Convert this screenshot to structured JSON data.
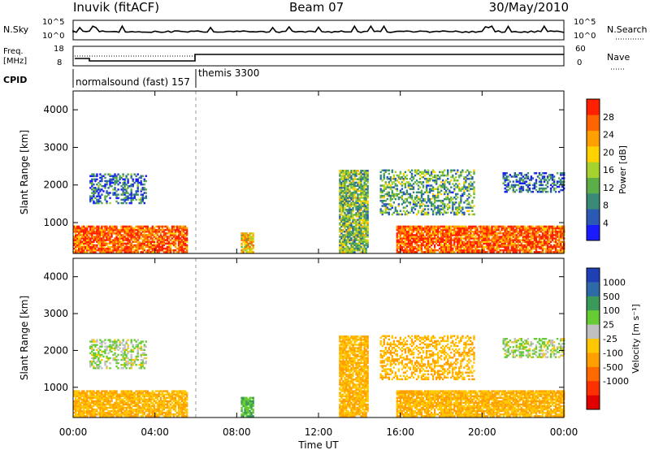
{
  "header": {
    "title_left": "Inuvik (fitACF)",
    "title_center": "Beam 07",
    "title_right": "30/May/2010"
  },
  "noise_panel": {
    "left_label": "N.Sky",
    "right_label": "N.Search",
    "left_ticks": [
      "10^5",
      "10^0"
    ],
    "right_ticks": [
      "10^5",
      "10^0"
    ]
  },
  "freq_panel": {
    "left_label_1": "Freq.",
    "left_label_2": "[MHz]",
    "right_label": "Nave",
    "left_ticks": [
      "18",
      "8"
    ],
    "right_ticks": [
      "60",
      "0"
    ]
  },
  "cpid": {
    "label": "CPID",
    "segments": [
      {
        "text": "normalsound (fast) 157",
        "start_hour": 0,
        "end_hour": 6
      },
      {
        "text": "themis 3300",
        "start_hour": 6,
        "end_hour": 24
      }
    ]
  },
  "x_axis": {
    "label": "Time UT",
    "ticks": [
      "00:00",
      "04:00",
      "08:00",
      "12:00",
      "16:00",
      "20:00",
      "00:00"
    ],
    "tick_hours": [
      0,
      4,
      8,
      12,
      16,
      20,
      24
    ]
  },
  "y_axis": {
    "label": "Slant Range [km]",
    "ticks": [
      "1000",
      "2000",
      "3000",
      "4000"
    ],
    "tick_values": [
      1000,
      2000,
      3000,
      4000
    ],
    "range": [
      180,
      4500
    ]
  },
  "power_scale": {
    "label": "Power [dB]",
    "ticks": [
      "4",
      "8",
      "12",
      "16",
      "20",
      "24",
      "28"
    ],
    "colors": [
      "#1a1aff",
      "#2a5ab4",
      "#3a8a78",
      "#5cae48",
      "#a6d230",
      "#ffd200",
      "#ffa000",
      "#ff6400",
      "#ff2000"
    ]
  },
  "velocity_scale": {
    "label": "Velocity [m s⁻¹]",
    "ticks": [
      "1000",
      "500",
      "100",
      "25",
      "-25",
      "-100",
      "-500",
      "-1000"
    ],
    "colors": [
      "#1f3fb4",
      "#2e6aa8",
      "#3a9a5a",
      "#66cc33",
      "#c0c0c0",
      "#ffc800",
      "#ffa000",
      "#ff6a00",
      "#ff3000",
      "#e00000"
    ]
  },
  "chart_data": {
    "type": "heatmap",
    "title": "Inuvik (fitACF) Beam 07 30/May/2010",
    "xlabel": "Time UT",
    "ylabel": "Slant Range [km]",
    "xlim": [
      0,
      24
    ],
    "ylim": [
      180,
      4500
    ],
    "backscatter_regions": [
      {
        "t0": 0.0,
        "t1": 5.6,
        "r0": 200,
        "r1": 900,
        "power_db": 26,
        "velocity": -100
      },
      {
        "t0": 0.8,
        "t1": 3.6,
        "r0": 1500,
        "r1": 2300,
        "power_db": 8,
        "velocity": 25
      },
      {
        "t0": 8.2,
        "t1": 8.8,
        "r0": 200,
        "r1": 700,
        "power_db": 20,
        "velocity": 100
      },
      {
        "t0": 13.0,
        "t1": 14.4,
        "r0": 200,
        "r1": 2400,
        "power_db": 14,
        "velocity": -100
      },
      {
        "t0": 15.0,
        "t1": 19.6,
        "r0": 1200,
        "r1": 2400,
        "power_db": 12,
        "velocity": -100
      },
      {
        "t0": 15.8,
        "t1": 24.0,
        "r0": 200,
        "r1": 900,
        "power_db": 26,
        "velocity": -100
      },
      {
        "t0": 21.0,
        "t1": 24.0,
        "r0": 1800,
        "r1": 2300,
        "power_db": 8,
        "velocity": 25
      }
    ]
  }
}
